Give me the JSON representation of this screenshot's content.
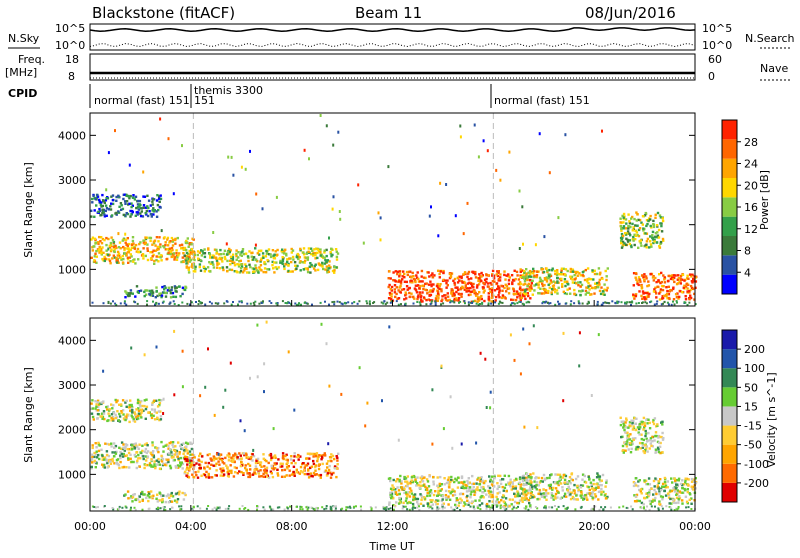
{
  "header": {
    "title": "Blackstone (fitACF)",
    "beam": "Beam 11",
    "date": "08/Jun/2016"
  },
  "panels": {
    "nsky_label": "N.Sky",
    "nsearch_label": "N.Search",
    "noise_left_ticks": [
      "10^5",
      "10^0"
    ],
    "noise_right_ticks": [
      "10^5",
      "10^0"
    ],
    "freq_label_1": "Freq.",
    "freq_label_2": "[MHz]",
    "freq_ticks": [
      "18",
      "8"
    ],
    "nave_label": "Nave",
    "nave_ticks": [
      "60",
      "0"
    ],
    "cpid_label": "CPID",
    "cpid_modes": [
      "normal (fast) 151",
      "themis 3300",
      "151",
      "normal (fast) 151"
    ]
  },
  "colors": {
    "power_scale": [
      "#0000ff",
      "#2952a3",
      "#3a7a3a",
      "#33a04a",
      "#88cc44",
      "#ffd700",
      "#ffa500",
      "#ff6600",
      "#ff2200"
    ],
    "velocity_scale": [
      "#e00000",
      "#ff6a00",
      "#ffa500",
      "#ffcc33",
      "#c8c8c8",
      "#66cc33",
      "#338855",
      "#2255aa",
      "#1a1aaa"
    ]
  },
  "chart_data": [
    {
      "type": "heatmap",
      "title": "Power",
      "ylabel": "Slant Range [km]",
      "xlabel": "Time UT",
      "x_ticks": [
        "00:00",
        "04:00",
        "08:00",
        "12:00",
        "16:00",
        "20:00",
        "00:00"
      ],
      "y_ticks": [
        1000,
        2000,
        3000,
        4000
      ],
      "ylim": [
        180,
        4500
      ],
      "colorbar_label": "Power [dB]",
      "colorbar_ticks": [
        4,
        8,
        12,
        16,
        20,
        24,
        28
      ],
      "bands": [
        {
          "t0": 0.0,
          "t1": 4.1,
          "r0": 1150,
          "r1": 1750,
          "level": 0.65
        },
        {
          "t0": 0.0,
          "t1": 2.8,
          "r0": 2200,
          "r1": 2700,
          "level": 0.2
        },
        {
          "t0": 1.3,
          "t1": 3.8,
          "r0": 400,
          "r1": 650,
          "level": 0.3
        },
        {
          "t0": 3.7,
          "t1": 9.8,
          "r0": 950,
          "r1": 1500,
          "level": 0.55
        },
        {
          "t0": 11.8,
          "t1": 17.5,
          "r0": 300,
          "r1": 1000,
          "level": 0.9
        },
        {
          "t0": 17.0,
          "t1": 20.5,
          "r0": 450,
          "r1": 1050,
          "level": 0.6
        },
        {
          "t0": 21.5,
          "t1": 24.0,
          "r0": 350,
          "r1": 950,
          "level": 0.85
        },
        {
          "t0": 21.0,
          "t1": 22.7,
          "r0": 1500,
          "r1": 2300,
          "level": 0.5
        }
      ]
    },
    {
      "type": "heatmap",
      "title": "Velocity",
      "ylabel": "Slant Range [km]",
      "xlabel": "Time UT",
      "x_ticks": [
        "00:00",
        "04:00",
        "08:00",
        "12:00",
        "16:00",
        "20:00",
        "00:00"
      ],
      "y_ticks": [
        1000,
        2000,
        3000,
        4000
      ],
      "ylim": [
        180,
        4500
      ],
      "colorbar_label": "Velocity [m s^-1]",
      "colorbar_ticks": [
        200,
        100,
        50,
        15,
        -15,
        -50,
        -100,
        -200
      ],
      "bands": [
        {
          "t0": 0.0,
          "t1": 4.1,
          "r0": 1150,
          "r1": 1750,
          "level": 0.5
        },
        {
          "t0": 0.0,
          "t1": 2.8,
          "r0": 2200,
          "r1": 2700,
          "level": 0.5
        },
        {
          "t0": 1.3,
          "t1": 3.8,
          "r0": 400,
          "r1": 650,
          "level": 0.5
        },
        {
          "t0": 3.7,
          "t1": 9.8,
          "r0": 950,
          "r1": 1500,
          "level": 0.25
        },
        {
          "t0": 11.8,
          "t1": 17.5,
          "r0": 300,
          "r1": 1000,
          "level": 0.5
        },
        {
          "t0": 17.0,
          "t1": 20.5,
          "r0": 450,
          "r1": 1050,
          "level": 0.5
        },
        {
          "t0": 21.5,
          "t1": 24.0,
          "r0": 350,
          "r1": 950,
          "level": 0.5
        },
        {
          "t0": 21.0,
          "t1": 22.7,
          "r0": 1500,
          "r1": 2300,
          "level": 0.5
        }
      ]
    }
  ]
}
